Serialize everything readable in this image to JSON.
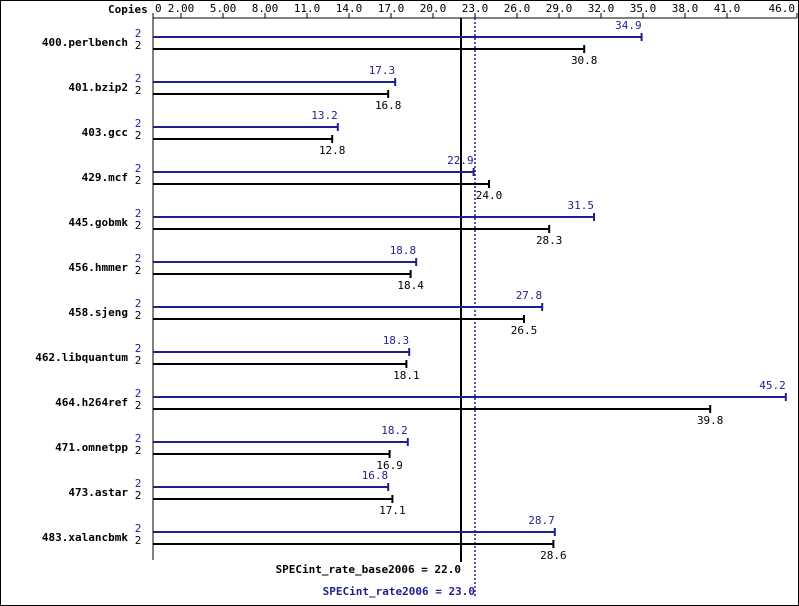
{
  "chart_data": {
    "type": "bar",
    "copies_label": "Copies",
    "categories": [
      "400.perlbench",
      "401.bzip2",
      "403.gcc",
      "429.mcf",
      "445.gobmk",
      "456.hmmer",
      "458.sjeng",
      "462.libquantum",
      "464.h264ref",
      "471.omnetpp",
      "473.astar",
      "483.xalancbmk"
    ],
    "series": [
      {
        "color": "#1f1f8f",
        "copies": [
          2,
          2,
          2,
          2,
          2,
          2,
          2,
          2,
          2,
          2,
          2,
          2
        ],
        "values": [
          34.9,
          17.3,
          13.2,
          22.9,
          31.5,
          18.8,
          27.8,
          18.3,
          45.2,
          18.2,
          16.8,
          28.7
        ],
        "value_labels": [
          "34.9",
          "17.3",
          "13.2",
          "22.9",
          "31.5",
          "18.8",
          "27.8",
          "18.3",
          "45.2",
          "18.2",
          "16.8",
          "28.7"
        ]
      },
      {
        "color": "#000000",
        "copies": [
          2,
          2,
          2,
          2,
          2,
          2,
          2,
          2,
          2,
          2,
          2,
          2
        ],
        "values": [
          30.8,
          16.8,
          12.8,
          24.0,
          28.3,
          18.4,
          26.5,
          18.1,
          39.8,
          16.9,
          17.1,
          28.6
        ],
        "value_labels": [
          "30.8",
          "16.8",
          "12.8",
          "24.0",
          "28.3",
          "18.4",
          "26.5",
          "18.1",
          "39.8",
          "16.9",
          "17.1",
          "28.6"
        ]
      }
    ],
    "reference_lines": [
      {
        "value": 22,
        "label": "SPECint_rate_base2006 = 22.0",
        "color": "#000000",
        "dashed": false
      },
      {
        "value": 23,
        "label": "SPECint_rate2006 = 23.0",
        "color": "#1f1f8f",
        "dashed": true
      }
    ],
    "xlim": [
      0,
      46
    ],
    "xticks": [
      0,
      {
        "value": 2,
        "label": "2.00"
      },
      {
        "value": 5,
        "label": "5.00"
      },
      {
        "value": 8,
        "label": "8.00"
      },
      {
        "value": 11,
        "label": "11.0"
      },
      {
        "value": 14,
        "label": "14.0"
      },
      {
        "value": 17,
        "label": "17.0"
      },
      {
        "value": 20,
        "label": "20.0"
      },
      {
        "value": 23,
        "label": "23.0"
      },
      {
        "value": 26,
        "label": "26.0"
      },
      {
        "value": 29,
        "label": "29.0"
      },
      {
        "value": 32,
        "label": "32.0"
      },
      {
        "value": 35,
        "label": "35.0"
      },
      {
        "value": 38,
        "label": "38.0"
      },
      {
        "value": 41,
        "label": "41.0"
      },
      {
        "value": 46,
        "label": "46.0"
      }
    ]
  }
}
